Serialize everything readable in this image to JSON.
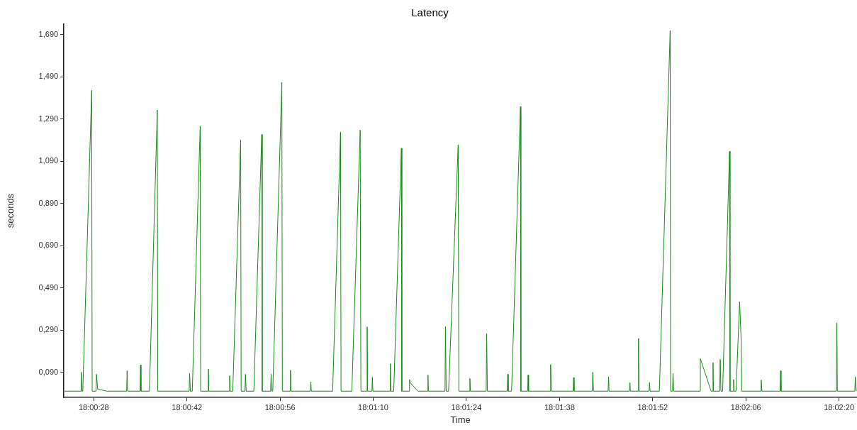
{
  "chart_data": {
    "type": "line",
    "title": "Latency",
    "xlabel": "Time",
    "ylabel": "seconds",
    "color": "#1a8a1a",
    "grid": false,
    "legend": false,
    "marker": "none",
    "line_style": "solid",
    "xlim": [
      18.00653,
      18.03964
    ],
    "xticks": [
      {
        "value": 18.007778,
        "label": "18:00:28"
      },
      {
        "value": 18.011667,
        "label": "18:00:42"
      },
      {
        "value": 18.015556,
        "label": "18:00:56"
      },
      {
        "value": 18.019444,
        "label": "18:01:10"
      },
      {
        "value": 18.023333,
        "label": "18:01:24"
      },
      {
        "value": 18.027222,
        "label": "18:01:38"
      },
      {
        "value": 18.031111,
        "label": "18:01:52"
      },
      {
        "value": 18.035,
        "label": "18:02:06"
      },
      {
        "value": 18.038889,
        "label": "18:02:20"
      }
    ],
    "ylim": [
      -0.03,
      1.74
    ],
    "yticks": [
      {
        "value": 0.09,
        "label": "0,090"
      },
      {
        "value": 0.29,
        "label": "0,290"
      },
      {
        "value": 0.49,
        "label": "0,490"
      },
      {
        "value": 0.69,
        "label": "0,690"
      },
      {
        "value": 0.89,
        "label": "0,890"
      },
      {
        "value": 1.09,
        "label": "1,090"
      },
      {
        "value": 1.29,
        "label": "1,290"
      },
      {
        "value": 1.49,
        "label": "1,490"
      },
      {
        "value": 1.69,
        "label": "1,690"
      }
    ],
    "x": [
      18.00656,
      18.00725,
      18.00726,
      18.00729,
      18.00732,
      18.00769,
      18.00771,
      18.00787,
      18.00789,
      18.00794,
      18.00833,
      18.00915,
      18.00917,
      18.00919,
      18.00971,
      18.00973,
      18.00975,
      18.0101,
      18.01043,
      18.01045,
      18.01176,
      18.01178,
      18.01181,
      18.01189,
      18.01222,
      18.01224,
      18.01254,
      18.01256,
      18.01258,
      18.01343,
      18.01345,
      18.01347,
      18.01358,
      18.01391,
      18.01393,
      18.01409,
      18.01411,
      18.01414,
      18.01446,
      18.01479,
      18.01481,
      18.01516,
      18.01518,
      18.01521,
      18.01525,
      18.01563,
      18.01565,
      18.01597,
      18.01599,
      18.01601,
      18.01682,
      18.01684,
      18.01686,
      18.01775,
      18.01808,
      18.0181,
      18.01855,
      18.0189,
      18.01893,
      18.01917,
      18.01919,
      18.01921,
      18.01939,
      18.01941,
      18.01943,
      18.02014,
      18.02016,
      18.02018,
      18.0203,
      18.02062,
      18.02064,
      18.02094,
      18.02096,
      18.02099,
      18.02131,
      18.02171,
      18.02173,
      18.02175,
      18.02244,
      18.02246,
      18.02249,
      18.02259,
      18.02299,
      18.02302,
      18.02346,
      18.02348,
      18.0235,
      18.02416,
      18.02418,
      18.02421,
      18.02504,
      18.02506,
      18.02508,
      18.02522,
      18.02559,
      18.02561,
      18.02589,
      18.02591,
      18.02593,
      18.02683,
      18.02685,
      18.02688,
      18.02779,
      18.02781,
      18.02783,
      18.02859,
      18.02861,
      18.02864,
      18.02925,
      18.02927,
      18.02929,
      18.03014,
      18.03016,
      18.03018,
      18.0305,
      18.03052,
      18.03054,
      18.03096,
      18.03098,
      18.031,
      18.03139,
      18.03184,
      18.03186,
      18.03194,
      18.03196,
      18.03199,
      18.03308,
      18.0331,
      18.03355,
      18.03361,
      18.03363,
      18.03365,
      18.03391,
      18.03393,
      18.03396,
      18.03403,
      18.03432,
      18.03434,
      18.03447,
      18.03449,
      18.03451,
      18.03459,
      18.03474,
      18.03481,
      18.03483,
      18.03562,
      18.03564,
      18.03567,
      18.03643,
      18.03645,
      18.03647,
      18.03878,
      18.0388,
      18.03882,
      18.03955,
      18.03957,
      18.03961
    ],
    "values": [
      0,
      0,
      0.09,
      0,
      0,
      1.426,
      0,
      0,
      0.08,
      0.01,
      0,
      0,
      0.097,
      0,
      0,
      0.125,
      0,
      0,
      1.333,
      0,
      0,
      0.085,
      0,
      0,
      1.256,
      0,
      0,
      0.105,
      0,
      0,
      0.073,
      0,
      0,
      1.191,
      0,
      0,
      0.08,
      0,
      0,
      1.217,
      0,
      0,
      0.08,
      0,
      0,
      1.464,
      0,
      0,
      0.1,
      0,
      0,
      0.044,
      0,
      0,
      1.229,
      0,
      0,
      1.238,
      0,
      0,
      0.305,
      0,
      0,
      0.066,
      0,
      0,
      0.13,
      0,
      0,
      1.152,
      0,
      0,
      0.055,
      0.04,
      0,
      0,
      0.077,
      0,
      0,
      0.305,
      0,
      0,
      1.167,
      0,
      0,
      0.06,
      0,
      0,
      0.272,
      0,
      0,
      0.08,
      0,
      0,
      1.349,
      0,
      0,
      0.077,
      0,
      0,
      0.126,
      0,
      0,
      0.065,
      0,
      0,
      0.09,
      0,
      0,
      0.067,
      0,
      0,
      0.04,
      0,
      0,
      0.25,
      0,
      0,
      0.04,
      0,
      0,
      1.709,
      0,
      0,
      0.085,
      0,
      0,
      0.154,
      0,
      0,
      0.136,
      0,
      0,
      0.151,
      0,
      0,
      1.137,
      0,
      0,
      0.055,
      0,
      0,
      0.424,
      0.225,
      0,
      0,
      0.053,
      0,
      0,
      0.097,
      0,
      0,
      0.323,
      0,
      0,
      0.067,
      0
    ]
  }
}
